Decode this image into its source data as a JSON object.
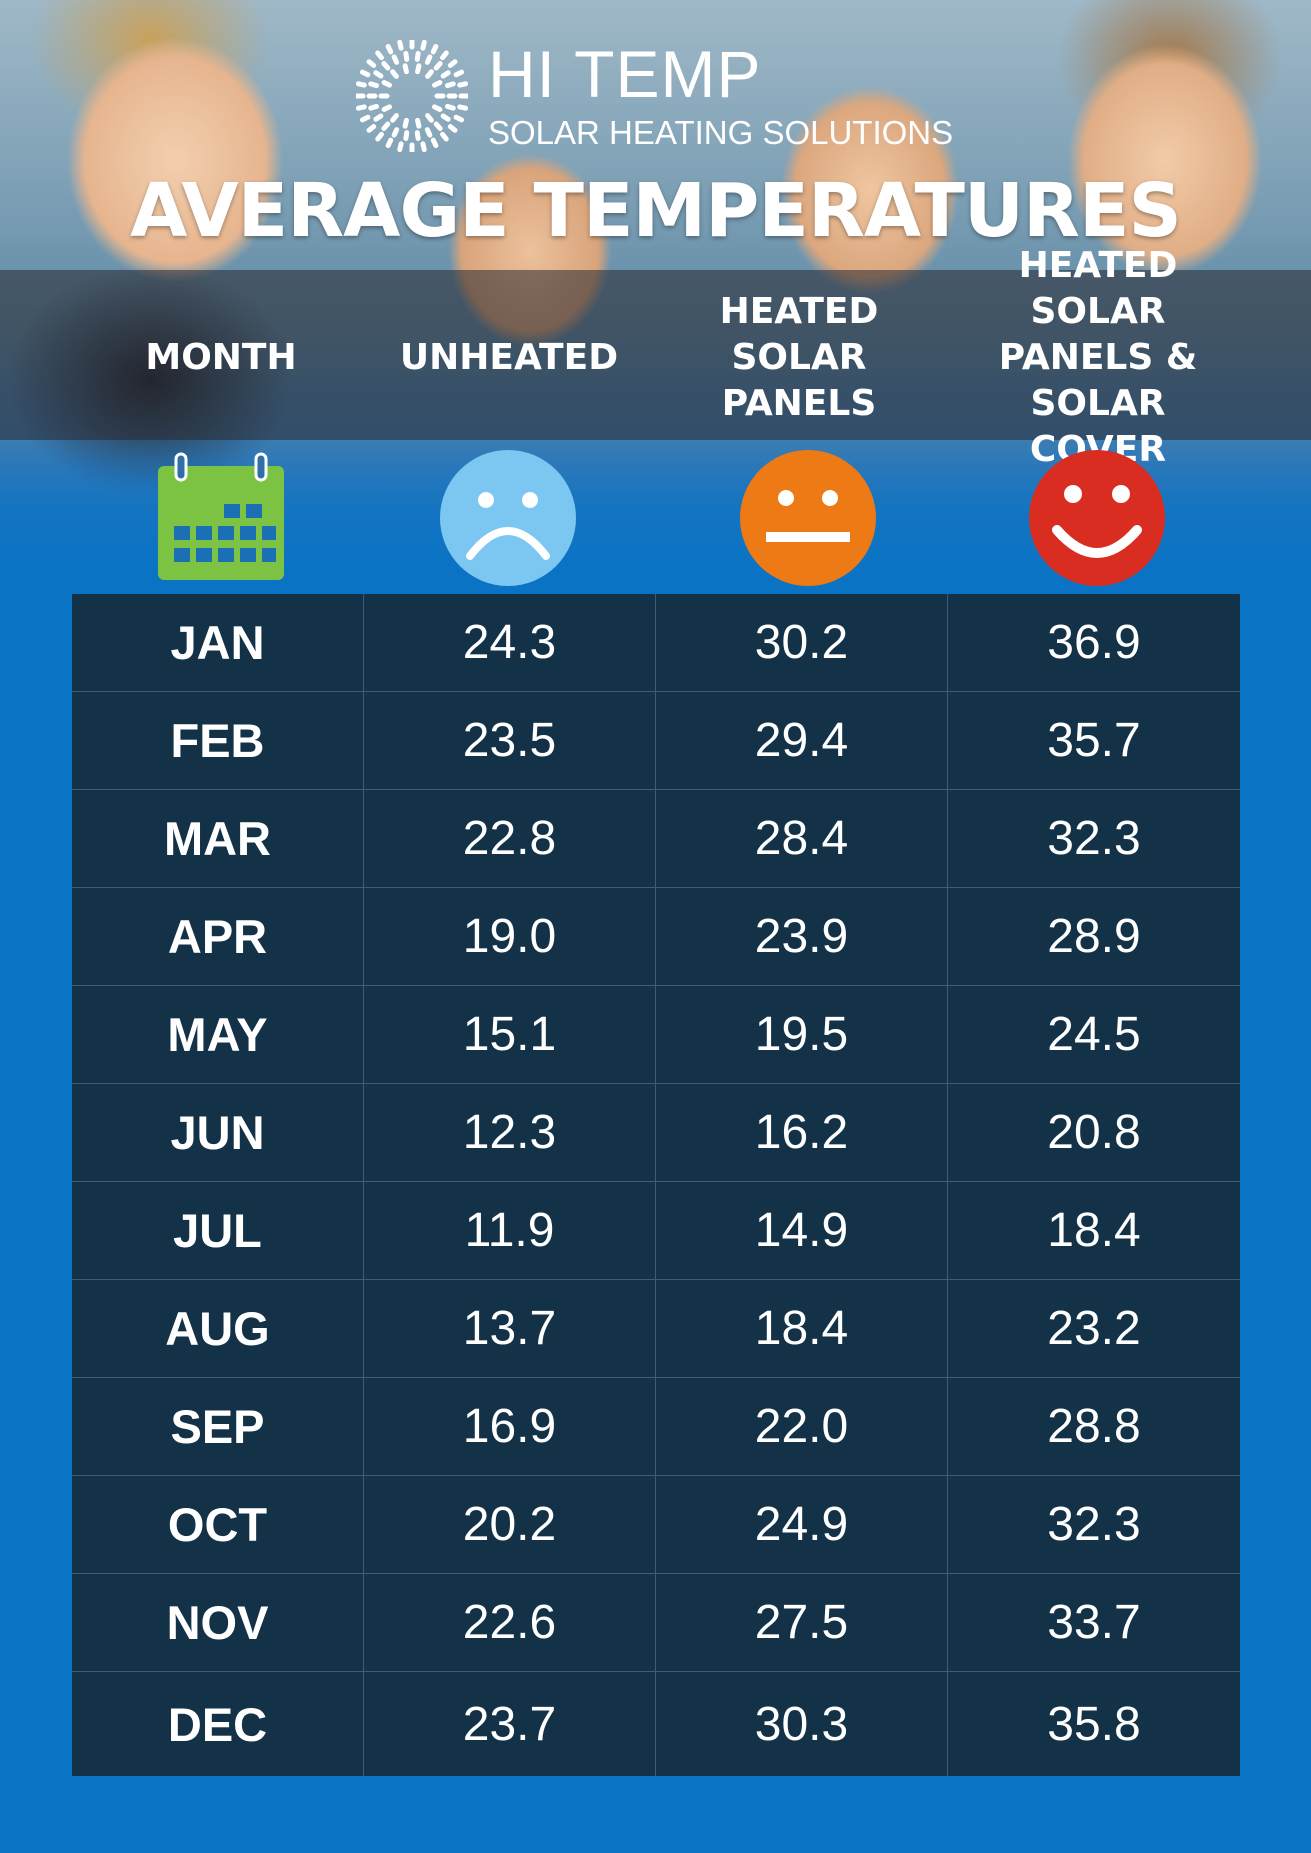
{
  "brand": {
    "name": "HI TEMP",
    "tagline": "SOLAR HEATING SOLUTIONS"
  },
  "title": "AVERAGE TEMPERATURES",
  "columns": {
    "month": "MONTH",
    "unheated": "UNHEATED",
    "solar_panels_line1": "HEATED",
    "solar_panels_line2": "SOLAR PANELS",
    "solar_cover_line1": "HEATED SOLAR",
    "solar_cover_line2": "PANELS &",
    "solar_cover_line3": "SOLAR COVER"
  },
  "icons": {
    "month": "calendar-icon",
    "unheated": "sad-face-icon",
    "solar_panels": "neutral-face-icon",
    "solar_cover": "happy-face-icon"
  },
  "colors": {
    "background_blue": "#0a73c4",
    "table_navy": "#133248",
    "calendar_green": "#7cc243",
    "sad_light_blue": "#7cc6f2",
    "neutral_orange": "#ee7a16",
    "happy_red": "#d92d22"
  },
  "chart_data": {
    "type": "table",
    "title": "AVERAGE TEMPERATURES",
    "columns": [
      "MONTH",
      "UNHEATED",
      "HEATED SOLAR PANELS",
      "HEATED SOLAR PANELS & SOLAR COVER"
    ],
    "rows": [
      {
        "month": "JAN",
        "unheated": "24.3",
        "solar_panels": "30.2",
        "solar_cover": "36.9"
      },
      {
        "month": "FEB",
        "unheated": "23.5",
        "solar_panels": "29.4",
        "solar_cover": "35.7"
      },
      {
        "month": "MAR",
        "unheated": "22.8",
        "solar_panels": "28.4",
        "solar_cover": "32.3"
      },
      {
        "month": "APR",
        "unheated": "19.0",
        "solar_panels": "23.9",
        "solar_cover": "28.9"
      },
      {
        "month": "MAY",
        "unheated": "15.1",
        "solar_panels": "19.5",
        "solar_cover": "24.5"
      },
      {
        "month": "JUN",
        "unheated": "12.3",
        "solar_panels": "16.2",
        "solar_cover": "20.8"
      },
      {
        "month": "JUL",
        "unheated": "11.9",
        "solar_panels": "14.9",
        "solar_cover": "18.4"
      },
      {
        "month": "AUG",
        "unheated": "13.7",
        "solar_panels": "18.4",
        "solar_cover": "23.2"
      },
      {
        "month": "SEP",
        "unheated": "16.9",
        "solar_panels": "22.0",
        "solar_cover": "28.8"
      },
      {
        "month": "OCT",
        "unheated": "20.2",
        "solar_panels": "24.9",
        "solar_cover": "32.3"
      },
      {
        "month": "NOV",
        "unheated": "22.6",
        "solar_panels": "27.5",
        "solar_cover": "33.7"
      },
      {
        "month": "DEC",
        "unheated": "23.7",
        "solar_panels": "30.3",
        "solar_cover": "35.8"
      }
    ]
  }
}
